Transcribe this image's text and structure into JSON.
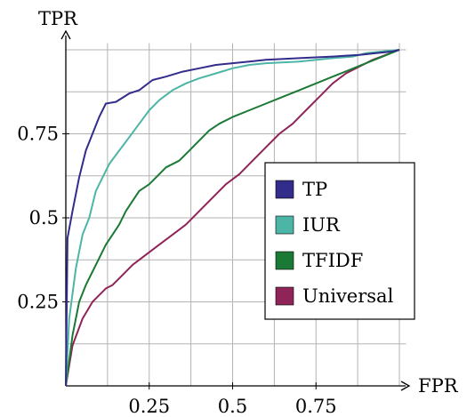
{
  "chart_data": {
    "type": "line",
    "title": "",
    "xlabel": "FPR",
    "ylabel": "TPR",
    "xlim": [
      0,
      1
    ],
    "ylim": [
      0,
      1
    ],
    "xticks": [
      0.25,
      0.5,
      0.75
    ],
    "xtick_labels": [
      "0.25",
      "0.5",
      "0.75"
    ],
    "yticks": [
      0.25,
      0.5,
      0.75
    ],
    "ytick_labels": [
      "0.25",
      "0.5",
      "0.75"
    ],
    "grid": true,
    "legend_position": "bottom-right",
    "series": [
      {
        "name": "TP",
        "color": "#322c8a",
        "points": [
          [
            0,
            0
          ],
          [
            0.005,
            0.44
          ],
          [
            0.02,
            0.52
          ],
          [
            0.04,
            0.62
          ],
          [
            0.06,
            0.7
          ],
          [
            0.08,
            0.75
          ],
          [
            0.1,
            0.8
          ],
          [
            0.12,
            0.84
          ],
          [
            0.15,
            0.845
          ],
          [
            0.19,
            0.87
          ],
          [
            0.22,
            0.88
          ],
          [
            0.26,
            0.91
          ],
          [
            0.3,
            0.92
          ],
          [
            0.35,
            0.935
          ],
          [
            0.4,
            0.945
          ],
          [
            0.45,
            0.955
          ],
          [
            0.5,
            0.96
          ],
          [
            0.55,
            0.965
          ],
          [
            0.6,
            0.97
          ],
          [
            0.7,
            0.975
          ],
          [
            0.8,
            0.98
          ],
          [
            0.88,
            0.985
          ],
          [
            0.93,
            0.99
          ],
          [
            0.98,
            0.995
          ],
          [
            1.0,
            1.0
          ]
        ]
      },
      {
        "name": "IUR",
        "color": "#4cb5a5",
        "points": [
          [
            0,
            0
          ],
          [
            0.01,
            0.2
          ],
          [
            0.03,
            0.35
          ],
          [
            0.05,
            0.45
          ],
          [
            0.07,
            0.5
          ],
          [
            0.09,
            0.58
          ],
          [
            0.11,
            0.62
          ],
          [
            0.13,
            0.66
          ],
          [
            0.16,
            0.7
          ],
          [
            0.19,
            0.74
          ],
          [
            0.22,
            0.78
          ],
          [
            0.25,
            0.82
          ],
          [
            0.28,
            0.85
          ],
          [
            0.32,
            0.88
          ],
          [
            0.36,
            0.9
          ],
          [
            0.4,
            0.915
          ],
          [
            0.45,
            0.93
          ],
          [
            0.5,
            0.945
          ],
          [
            0.55,
            0.955
          ],
          [
            0.6,
            0.96
          ],
          [
            0.7,
            0.965
          ],
          [
            0.8,
            0.975
          ],
          [
            0.86,
            0.98
          ],
          [
            0.9,
            0.99
          ],
          [
            0.95,
            0.995
          ],
          [
            1.0,
            1.0
          ]
        ]
      },
      {
        "name": "TFIDF",
        "color": "#1a7a35",
        "points": [
          [
            0,
            0
          ],
          [
            0.02,
            0.15
          ],
          [
            0.04,
            0.25
          ],
          [
            0.06,
            0.3
          ],
          [
            0.08,
            0.34
          ],
          [
            0.1,
            0.38
          ],
          [
            0.12,
            0.42
          ],
          [
            0.14,
            0.45
          ],
          [
            0.16,
            0.48
          ],
          [
            0.18,
            0.52
          ],
          [
            0.2,
            0.55
          ],
          [
            0.22,
            0.58
          ],
          [
            0.25,
            0.6
          ],
          [
            0.28,
            0.63
          ],
          [
            0.3,
            0.65
          ],
          [
            0.34,
            0.67
          ],
          [
            0.37,
            0.7
          ],
          [
            0.4,
            0.73
          ],
          [
            0.43,
            0.76
          ],
          [
            0.46,
            0.78
          ],
          [
            0.5,
            0.8
          ],
          [
            0.55,
            0.82
          ],
          [
            0.6,
            0.84
          ],
          [
            0.65,
            0.86
          ],
          [
            0.7,
            0.88
          ],
          [
            0.75,
            0.9
          ],
          [
            0.8,
            0.92
          ],
          [
            0.85,
            0.94
          ],
          [
            0.9,
            0.96
          ],
          [
            0.95,
            0.98
          ],
          [
            1.0,
            1.0
          ]
        ]
      },
      {
        "name": "Universal",
        "color": "#8f2458",
        "points": [
          [
            0,
            0
          ],
          [
            0.02,
            0.12
          ],
          [
            0.05,
            0.2
          ],
          [
            0.08,
            0.25
          ],
          [
            0.1,
            0.27
          ],
          [
            0.12,
            0.29
          ],
          [
            0.14,
            0.3
          ],
          [
            0.17,
            0.33
          ],
          [
            0.2,
            0.36
          ],
          [
            0.24,
            0.39
          ],
          [
            0.28,
            0.42
          ],
          [
            0.32,
            0.45
          ],
          [
            0.36,
            0.48
          ],
          [
            0.4,
            0.52
          ],
          [
            0.44,
            0.56
          ],
          [
            0.48,
            0.6
          ],
          [
            0.52,
            0.63
          ],
          [
            0.56,
            0.67
          ],
          [
            0.6,
            0.71
          ],
          [
            0.64,
            0.75
          ],
          [
            0.68,
            0.78
          ],
          [
            0.72,
            0.82
          ],
          [
            0.76,
            0.86
          ],
          [
            0.8,
            0.9
          ],
          [
            0.84,
            0.93
          ],
          [
            0.88,
            0.95
          ],
          [
            0.92,
            0.97
          ],
          [
            0.96,
            0.985
          ],
          [
            1.0,
            1.0
          ]
        ]
      }
    ]
  }
}
